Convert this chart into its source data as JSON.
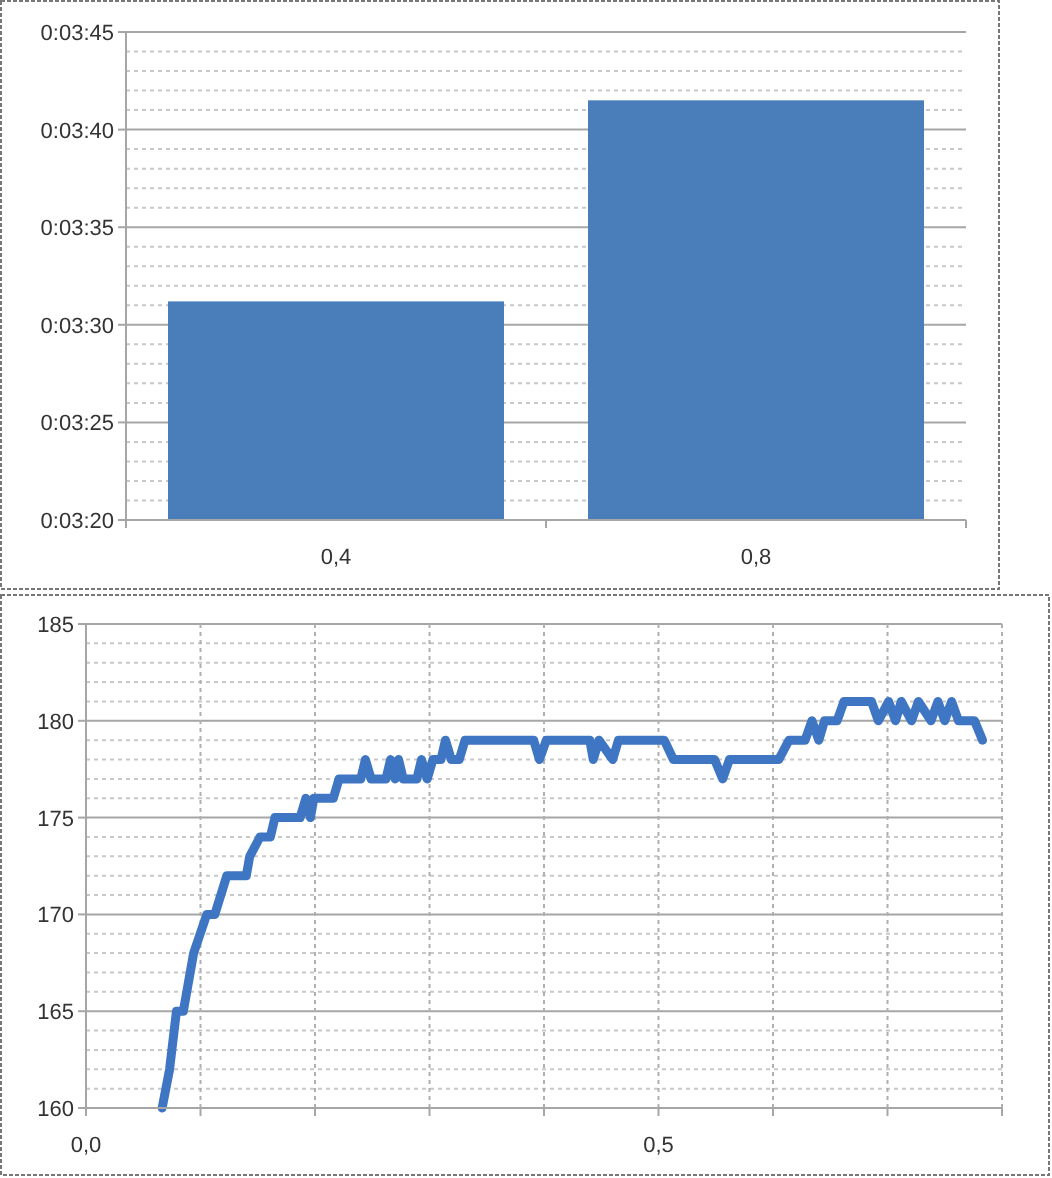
{
  "chart_data": [
    {
      "type": "bar",
      "categories": [
        "0,4",
        "0,8"
      ],
      "values": [
        211.2,
        221.5
      ],
      "color": "#4a7ebb",
      "ylim": [
        200,
        225
      ],
      "yticks": [
        {
          "value": 200,
          "label": "0:03:20"
        },
        {
          "value": 201,
          "label": null
        },
        {
          "value": 202,
          "label": null
        },
        {
          "value": 203,
          "label": null
        },
        {
          "value": 204,
          "label": null
        },
        {
          "value": 205,
          "label": "0:03:25"
        },
        {
          "value": 206,
          "label": null
        },
        {
          "value": 207,
          "label": null
        },
        {
          "value": 208,
          "label": null
        },
        {
          "value": 209,
          "label": null
        },
        {
          "value": 210,
          "label": "0:03:30"
        },
        {
          "value": 211,
          "label": null
        },
        {
          "value": 212,
          "label": null
        },
        {
          "value": 213,
          "label": null
        },
        {
          "value": 214,
          "label": null
        },
        {
          "value": 215,
          "label": "0:03:35"
        },
        {
          "value": 216,
          "label": null
        },
        {
          "value": 217,
          "label": null
        },
        {
          "value": 218,
          "label": null
        },
        {
          "value": 219,
          "label": null
        },
        {
          "value": 220,
          "label": "0:03:40"
        },
        {
          "value": 221,
          "label": null
        },
        {
          "value": 222,
          "label": null
        },
        {
          "value": 223,
          "label": null
        },
        {
          "value": 224,
          "label": null
        },
        {
          "value": 225,
          "label": "0:03:45"
        }
      ],
      "grid": "y"
    },
    {
      "type": "line",
      "color": "#3f76c4",
      "xlim": [
        0,
        0.8
      ],
      "ylim": [
        160,
        185
      ],
      "grid": true,
      "marker": "none",
      "line_style": "solid",
      "xticks": [
        {
          "value": 0,
          "label": "0,0"
        },
        {
          "value": 0.1,
          "label": null
        },
        {
          "value": 0.2,
          "label": null
        },
        {
          "value": 0.3,
          "label": null
        },
        {
          "value": 0.4,
          "label": null
        },
        {
          "value": 0.5,
          "label": "0,5"
        },
        {
          "value": 0.6,
          "label": null
        },
        {
          "value": 0.7,
          "label": null
        },
        {
          "value": 0.8,
          "label": null
        }
      ],
      "yticks": [
        160,
        {
          "value": 161,
          "label": null
        },
        {
          "value": 162,
          "label": null
        },
        {
          "value": 163,
          "label": null
        },
        {
          "value": 164,
          "label": null
        },
        165,
        {
          "value": 166,
          "label": null
        },
        {
          "value": 167,
          "label": null
        },
        {
          "value": 168,
          "label": null
        },
        {
          "value": 169,
          "label": null
        },
        170,
        {
          "value": 171,
          "label": null
        },
        {
          "value": 172,
          "label": null
        },
        {
          "value": 173,
          "label": null
        },
        {
          "value": 174,
          "label": null
        },
        175,
        {
          "value": 176,
          "label": null
        },
        {
          "value": 177,
          "label": null
        },
        {
          "value": 178,
          "label": null
        },
        {
          "value": 179,
          "label": null
        },
        180,
        {
          "value": 181,
          "label": null
        },
        {
          "value": 182,
          "label": null
        },
        {
          "value": 183,
          "label": null
        },
        {
          "value": 184,
          "label": null
        },
        185
      ],
      "x": [
        0.0665,
        0.073,
        0.079,
        0.085,
        0.094,
        0.1055,
        0.1125,
        0.123,
        0.14,
        0.143,
        0.152,
        0.161,
        0.165,
        0.187,
        0.192,
        0.196,
        0.199,
        0.216,
        0.221,
        0.24,
        0.244,
        0.249,
        0.262,
        0.266,
        0.27,
        0.273,
        0.277,
        0.289,
        0.293,
        0.298,
        0.303,
        0.31,
        0.314,
        0.319,
        0.326,
        0.331,
        0.391,
        0.396,
        0.402,
        0.44,
        0.443,
        0.448,
        0.46,
        0.465,
        0.505,
        0.513,
        0.549,
        0.556,
        0.562,
        0.605,
        0.614,
        0.628,
        0.634,
        0.64,
        0.645,
        0.656,
        0.662,
        0.686,
        0.692,
        0.701,
        0.707,
        0.712,
        0.721,
        0.727,
        0.738,
        0.744,
        0.75,
        0.756,
        0.762,
        0.776,
        0.783
      ],
      "values": [
        160,
        162,
        165,
        165,
        168,
        170,
        170,
        172,
        172,
        173,
        174,
        174,
        175,
        175,
        176,
        175,
        176,
        176,
        177,
        177,
        178,
        177,
        177,
        178,
        177,
        178,
        177,
        177,
        178,
        177,
        178,
        178,
        179,
        178,
        178,
        179,
        179,
        178,
        179,
        179,
        178,
        179,
        178,
        179,
        179,
        178,
        178,
        177,
        178,
        178,
        179,
        179,
        180,
        179,
        180,
        180,
        181,
        181,
        180,
        181,
        180,
        181,
        180,
        181,
        180,
        181,
        180,
        181,
        180,
        180,
        179
      ]
    }
  ]
}
